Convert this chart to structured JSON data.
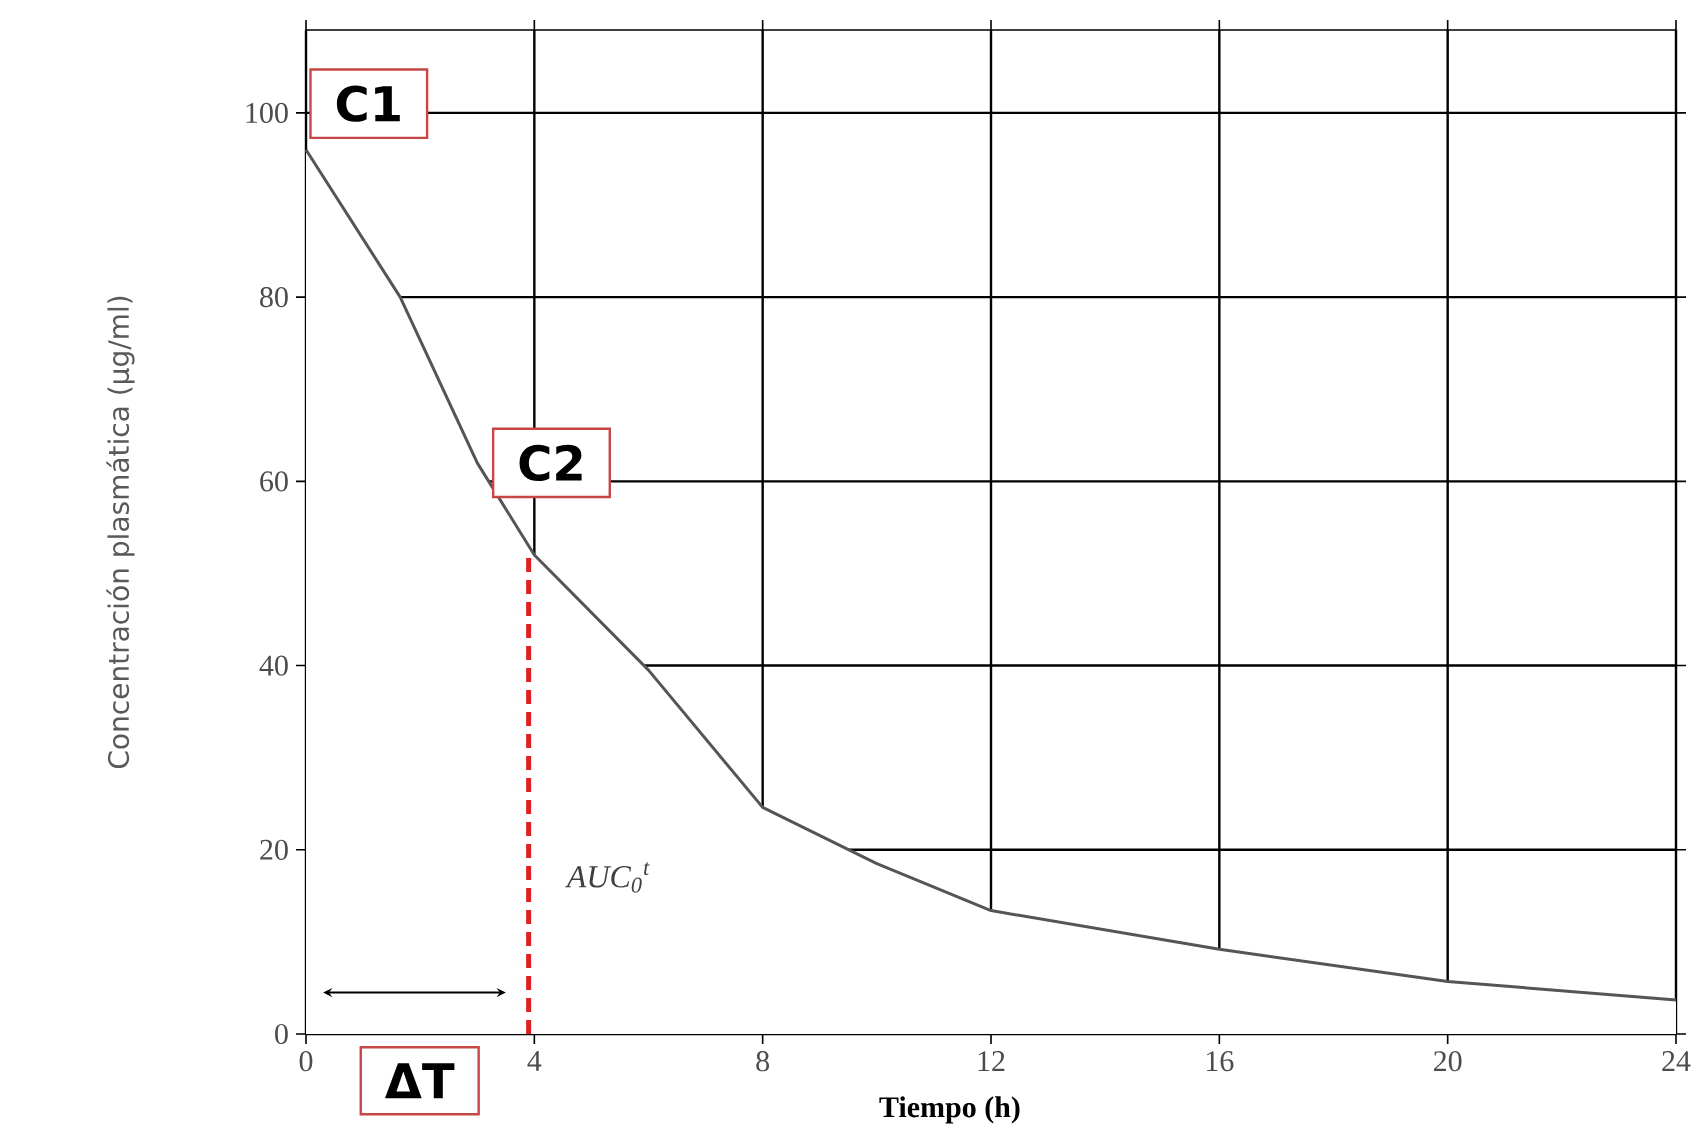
{
  "chart_data": {
    "type": "area",
    "xlabel": "Tiempo (h)",
    "ylabel": "Concentración plasmática (µg/ml)",
    "xlim": [
      0,
      24
    ],
    "ylim": [
      0,
      109
    ],
    "xticks": [
      0,
      4,
      8,
      12,
      16,
      20,
      24
    ],
    "yticks": [
      0,
      20,
      40,
      60,
      80,
      100
    ],
    "grid": true,
    "series": [
      {
        "color": "#555555",
        "x": [
          0,
          1.65,
          3,
          4,
          6,
          8,
          10,
          12,
          16,
          20,
          24
        ],
        "values": [
          96,
          80,
          62,
          52,
          39.5,
          24.6,
          18.5,
          13.4,
          9.2,
          5.7,
          3.7
        ]
      },
      {
        "type": "line",
        "color": "#e02020",
        "line_style": "dashed",
        "x": [
          3.9,
          3.9
        ],
        "values": [
          0,
          52
        ]
      }
    ],
    "annotations": [
      "C1",
      "C2",
      "AUC$_{0}$$^{t}$",
      "ΔT"
    ]
  }
}
